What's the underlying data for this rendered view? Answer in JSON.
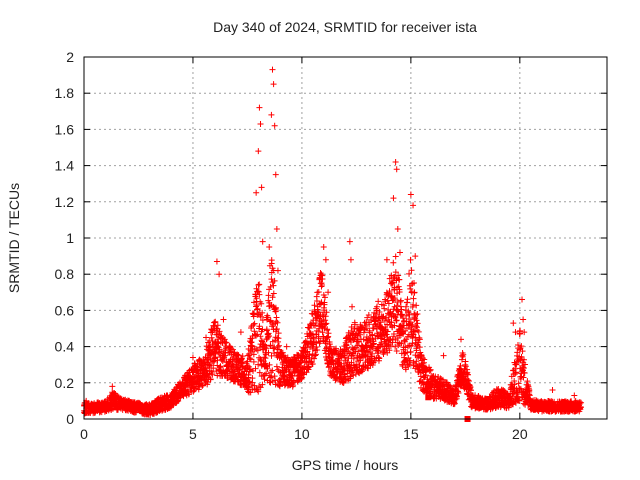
{
  "chart_data": {
    "type": "scatter",
    "title": "Day 340 of 2024, SRMTID for receiver ista",
    "xlabel": "GPS time / hours",
    "ylabel": "SRMTID / TECUs",
    "xlim": [
      0,
      24
    ],
    "ylim": [
      0,
      2
    ],
    "xticks": [
      "0",
      "5",
      "10",
      "15",
      "20"
    ],
    "yticks": [
      "0",
      "0.2",
      "0.4",
      "0.6",
      "0.8",
      "1",
      "1.2",
      "1.4",
      "1.6",
      "1.8",
      "2"
    ],
    "grid": true,
    "marker": "+",
    "series_color": "#ff0000",
    "profile": [
      [
        0.0,
        0.06,
        0.03
      ],
      [
        0.5,
        0.06,
        0.03
      ],
      [
        1.0,
        0.07,
        0.03
      ],
      [
        1.3,
        0.1,
        0.05
      ],
      [
        1.8,
        0.08,
        0.03
      ],
      [
        2.5,
        0.06,
        0.03
      ],
      [
        3.0,
        0.05,
        0.03
      ],
      [
        3.5,
        0.08,
        0.04
      ],
      [
        4.0,
        0.1,
        0.04
      ],
      [
        4.5,
        0.17,
        0.05
      ],
      [
        5.0,
        0.22,
        0.08
      ],
      [
        5.5,
        0.26,
        0.09
      ],
      [
        6.0,
        0.4,
        0.16
      ],
      [
        6.5,
        0.33,
        0.1
      ],
      [
        7.0,
        0.28,
        0.08
      ],
      [
        7.5,
        0.24,
        0.1
      ],
      [
        8.0,
        0.5,
        0.35
      ],
      [
        8.3,
        0.3,
        0.12
      ],
      [
        8.6,
        0.6,
        0.4
      ],
      [
        9.0,
        0.28,
        0.1
      ],
      [
        9.5,
        0.25,
        0.08
      ],
      [
        10.0,
        0.3,
        0.08
      ],
      [
        10.5,
        0.45,
        0.15
      ],
      [
        10.9,
        0.65,
        0.2
      ],
      [
        11.3,
        0.32,
        0.08
      ],
      [
        11.8,
        0.28,
        0.1
      ],
      [
        12.3,
        0.38,
        0.15
      ],
      [
        12.8,
        0.4,
        0.14
      ],
      [
        13.3,
        0.45,
        0.16
      ],
      [
        13.8,
        0.5,
        0.16
      ],
      [
        14.3,
        0.65,
        0.28
      ],
      [
        14.7,
        0.4,
        0.14
      ],
      [
        15.0,
        0.6,
        0.3
      ],
      [
        15.5,
        0.26,
        0.1
      ],
      [
        16.0,
        0.18,
        0.07
      ],
      [
        16.5,
        0.16,
        0.06
      ],
      [
        17.0,
        0.12,
        0.04
      ],
      [
        17.4,
        0.28,
        0.1
      ],
      [
        17.8,
        0.1,
        0.04
      ],
      [
        18.5,
        0.08,
        0.03
      ],
      [
        19.0,
        0.12,
        0.06
      ],
      [
        19.5,
        0.1,
        0.04
      ],
      [
        20.0,
        0.3,
        0.2
      ],
      [
        20.5,
        0.08,
        0.03
      ],
      [
        21.0,
        0.07,
        0.03
      ],
      [
        22.0,
        0.07,
        0.03
      ],
      [
        22.8,
        0.07,
        0.03
      ]
    ],
    "spikes": [
      [
        0.1,
        0.1
      ],
      [
        1.3,
        0.18
      ],
      [
        1.6,
        0.12
      ],
      [
        5.0,
        0.34
      ],
      [
        5.6,
        0.45
      ],
      [
        6.1,
        0.87
      ],
      [
        6.2,
        0.8
      ],
      [
        6.4,
        0.55
      ],
      [
        7.2,
        0.48
      ],
      [
        7.7,
        0.4
      ],
      [
        7.9,
        1.25
      ],
      [
        8.0,
        1.48
      ],
      [
        8.05,
        1.72
      ],
      [
        8.1,
        1.63
      ],
      [
        8.15,
        1.28
      ],
      [
        8.2,
        0.98
      ],
      [
        8.4,
        0.55
      ],
      [
        8.5,
        0.95
      ],
      [
        8.6,
        1.68
      ],
      [
        8.65,
        1.93
      ],
      [
        8.7,
        1.85
      ],
      [
        8.75,
        1.62
      ],
      [
        8.8,
        1.35
      ],
      [
        8.85,
        1.05
      ],
      [
        8.9,
        0.82
      ],
      [
        8.6,
        0.63
      ],
      [
        9.3,
        0.4
      ],
      [
        10.5,
        0.58
      ],
      [
        10.9,
        0.8
      ],
      [
        11.0,
        0.95
      ],
      [
        11.1,
        0.88
      ],
      [
        11.2,
        0.7
      ],
      [
        12.2,
        0.98
      ],
      [
        12.25,
        0.88
      ],
      [
        12.3,
        0.62
      ],
      [
        13.5,
        0.65
      ],
      [
        13.9,
        0.88
      ],
      [
        14.2,
        1.22
      ],
      [
        14.3,
        1.42
      ],
      [
        14.35,
        1.38
      ],
      [
        14.4,
        1.05
      ],
      [
        14.5,
        0.92
      ],
      [
        15.0,
        1.24
      ],
      [
        15.1,
        1.18
      ],
      [
        15.2,
        0.9
      ],
      [
        15.3,
        0.58
      ],
      [
        16.5,
        0.35
      ],
      [
        17.3,
        0.44
      ],
      [
        19.7,
        0.53
      ],
      [
        19.8,
        0.48
      ],
      [
        20.1,
        0.66
      ],
      [
        20.15,
        0.55
      ],
      [
        20.2,
        0.48
      ],
      [
        21.5,
        0.16
      ],
      [
        22.5,
        0.13
      ]
    ],
    "square_markers": [
      [
        17.6,
        0.0
      ],
      [
        15.8,
        0.12
      ]
    ]
  }
}
